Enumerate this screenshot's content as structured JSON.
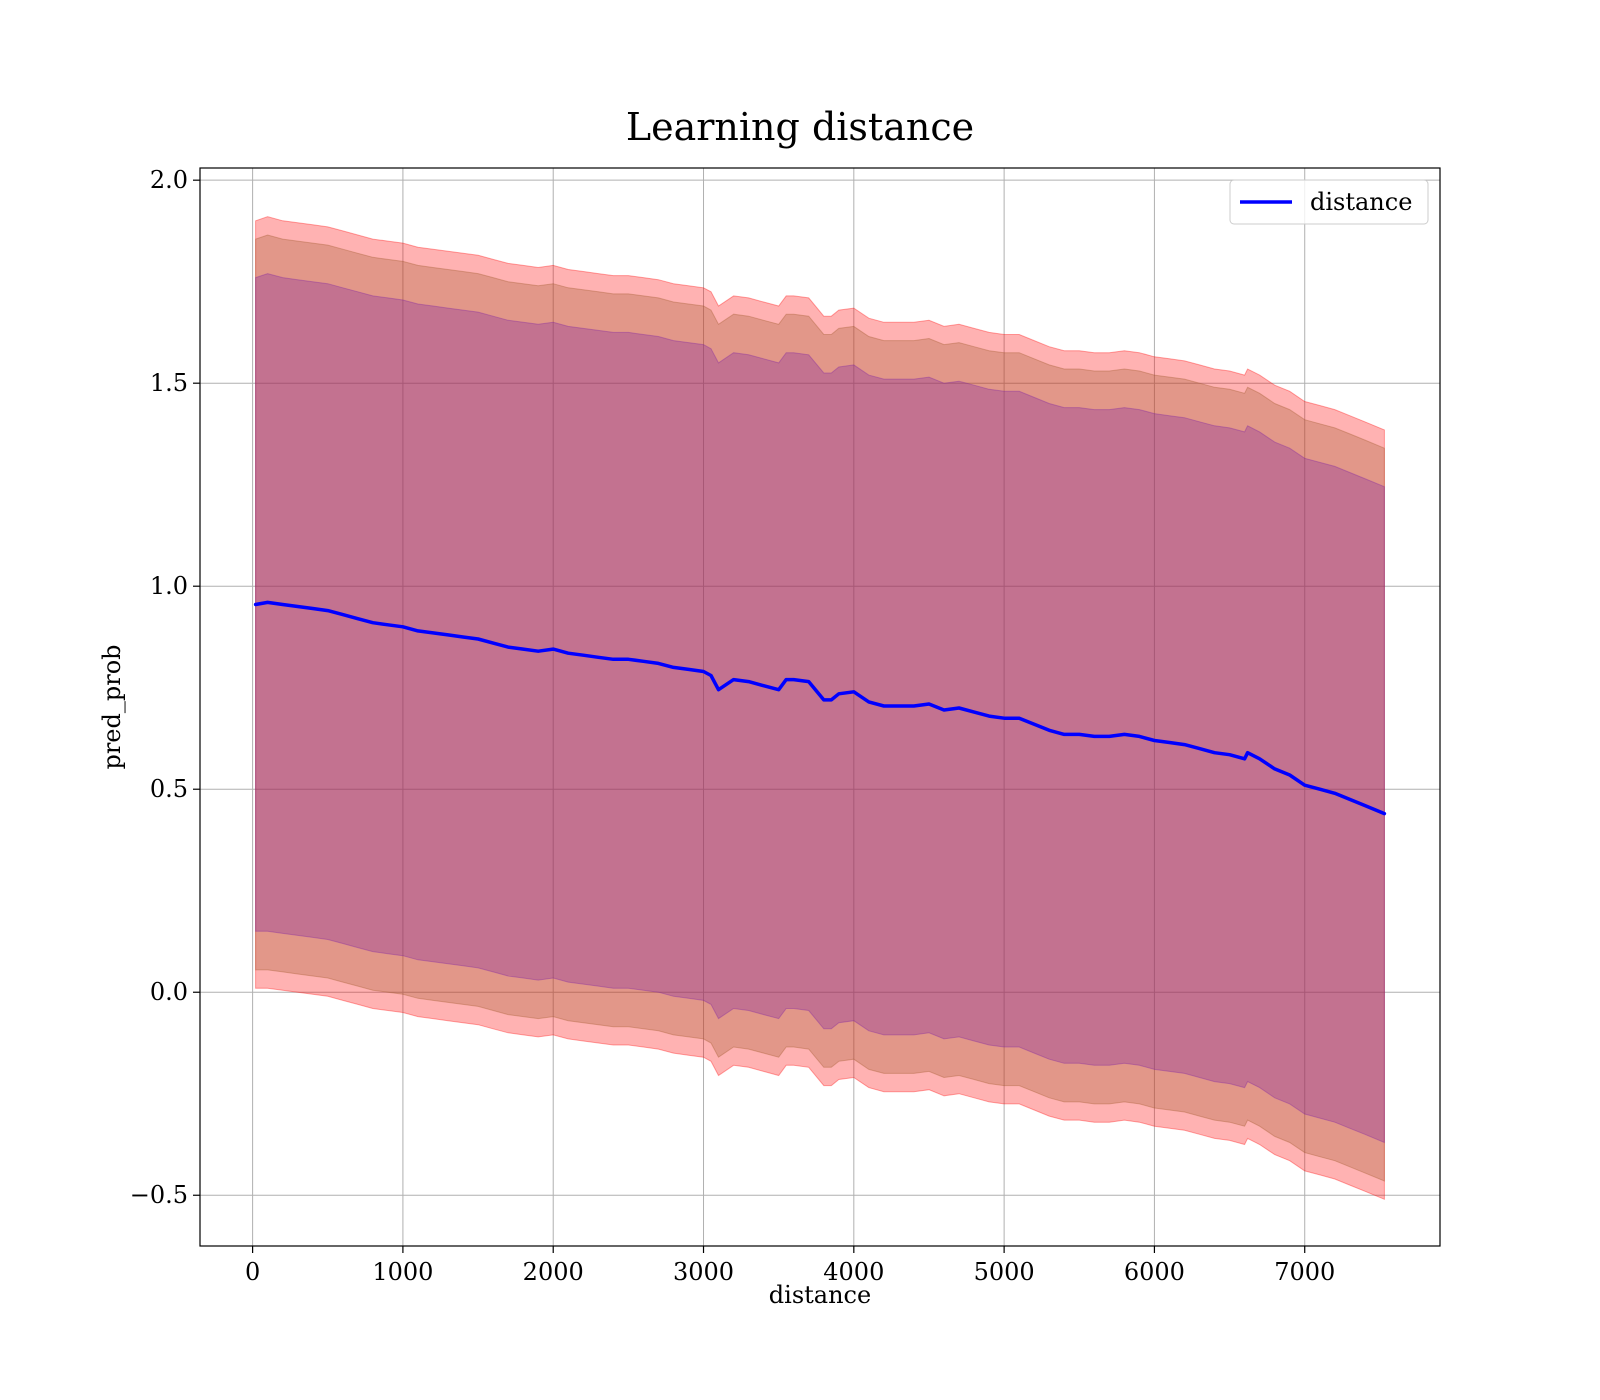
{
  "chart_data": {
    "type": "line",
    "title": "Learning distance",
    "xlabel": "distance",
    "ylabel": "pred_prob",
    "xlim": [
      -350,
      7900
    ],
    "ylim": [
      -0.625,
      2.03
    ],
    "x_ticks": [
      0,
      1000,
      2000,
      3000,
      4000,
      5000,
      6000,
      7000
    ],
    "x_tick_labels": [
      "0",
      "1000",
      "2000",
      "3000",
      "4000",
      "5000",
      "6000",
      "7000"
    ],
    "y_ticks": [
      -0.5,
      0.0,
      0.5,
      1.0,
      1.5,
      2.0
    ],
    "y_tick_labels": [
      "−0.5",
      "0.0",
      "0.5",
      "1.0",
      "1.5",
      "2.0"
    ],
    "grid": true,
    "legend_position": "top-right",
    "legend": [
      {
        "label": "distance",
        "color": "#0000ff"
      }
    ],
    "series": [
      {
        "name": "distance",
        "color": "#0000ff",
        "x": [
          20,
          100,
          200,
          300,
          400,
          500,
          600,
          700,
          800,
          900,
          1000,
          1100,
          1200,
          1300,
          1400,
          1500,
          1600,
          1700,
          1800,
          1900,
          2000,
          2100,
          2200,
          2300,
          2400,
          2500,
          2600,
          2700,
          2800,
          2900,
          3000,
          3050,
          3100,
          3200,
          3300,
          3400,
          3500,
          3550,
          3600,
          3700,
          3800,
          3850,
          3900,
          4000,
          4100,
          4200,
          4300,
          4400,
          4500,
          4600,
          4700,
          4800,
          4900,
          5000,
          5100,
          5200,
          5300,
          5400,
          5500,
          5600,
          5700,
          5800,
          5900,
          6000,
          6100,
          6200,
          6300,
          6400,
          6500,
          6600,
          6620,
          6700,
          6800,
          6900,
          7000,
          7100,
          7200,
          7300,
          7400,
          7530
        ],
        "y": [
          0.955,
          0.96,
          0.955,
          0.95,
          0.945,
          0.94,
          0.93,
          0.92,
          0.91,
          0.905,
          0.9,
          0.89,
          0.885,
          0.88,
          0.875,
          0.87,
          0.86,
          0.85,
          0.845,
          0.84,
          0.845,
          0.835,
          0.83,
          0.825,
          0.82,
          0.82,
          0.815,
          0.81,
          0.8,
          0.795,
          0.79,
          0.78,
          0.745,
          0.77,
          0.765,
          0.755,
          0.745,
          0.77,
          0.77,
          0.765,
          0.72,
          0.72,
          0.735,
          0.74,
          0.715,
          0.705,
          0.705,
          0.705,
          0.71,
          0.695,
          0.7,
          0.69,
          0.68,
          0.675,
          0.675,
          0.66,
          0.645,
          0.635,
          0.635,
          0.63,
          0.63,
          0.635,
          0.63,
          0.62,
          0.615,
          0.61,
          0.6,
          0.59,
          0.585,
          0.575,
          0.59,
          0.575,
          0.55,
          0.535,
          0.51,
          0.5,
          0.49,
          0.475,
          0.46,
          0.44
        ]
      }
    ],
    "bands": [
      {
        "color": "#ff0000",
        "x": [
          20,
          100,
          200,
          300,
          400,
          500,
          600,
          700,
          800,
          900,
          1000,
          1100,
          1200,
          1300,
          1400,
          1500,
          1600,
          1700,
          1800,
          1900,
          2000,
          2100,
          2200,
          2300,
          2400,
          2500,
          2600,
          2700,
          2800,
          2900,
          3000,
          3050,
          3100,
          3200,
          3300,
          3400,
          3500,
          3550,
          3600,
          3700,
          3800,
          3850,
          3900,
          4000,
          4100,
          4200,
          4300,
          4400,
          4500,
          4600,
          4700,
          4800,
          4900,
          5000,
          5100,
          5200,
          5300,
          5400,
          5500,
          5600,
          5700,
          5800,
          5900,
          6000,
          6100,
          6200,
          6300,
          6400,
          6500,
          6600,
          6620,
          6700,
          6800,
          6900,
          7000,
          7100,
          7200,
          7300,
          7400,
          7530
        ],
        "upper": [
          1.9,
          1.91,
          1.9,
          1.895,
          1.89,
          1.885,
          1.875,
          1.865,
          1.855,
          1.85,
          1.845,
          1.835,
          1.83,
          1.825,
          1.82,
          1.815,
          1.805,
          1.795,
          1.79,
          1.785,
          1.79,
          1.78,
          1.775,
          1.77,
          1.765,
          1.765,
          1.76,
          1.755,
          1.745,
          1.74,
          1.735,
          1.725,
          1.69,
          1.715,
          1.71,
          1.7,
          1.69,
          1.715,
          1.715,
          1.71,
          1.665,
          1.665,
          1.68,
          1.685,
          1.66,
          1.65,
          1.65,
          1.65,
          1.655,
          1.64,
          1.645,
          1.635,
          1.625,
          1.62,
          1.62,
          1.605,
          1.59,
          1.58,
          1.58,
          1.575,
          1.575,
          1.58,
          1.575,
          1.565,
          1.56,
          1.555,
          1.545,
          1.535,
          1.53,
          1.52,
          1.535,
          1.52,
          1.495,
          1.48,
          1.455,
          1.445,
          1.435,
          1.42,
          1.405,
          1.385
        ],
        "lower": [
          0.01,
          0.01,
          0.005,
          0.0,
          -0.005,
          -0.01,
          -0.02,
          -0.03,
          -0.04,
          -0.045,
          -0.05,
          -0.06,
          -0.065,
          -0.07,
          -0.075,
          -0.08,
          -0.09,
          -0.1,
          -0.105,
          -0.11,
          -0.105,
          -0.115,
          -0.12,
          -0.125,
          -0.13,
          -0.13,
          -0.135,
          -0.14,
          -0.15,
          -0.155,
          -0.16,
          -0.17,
          -0.205,
          -0.18,
          -0.185,
          -0.195,
          -0.205,
          -0.18,
          -0.18,
          -0.185,
          -0.23,
          -0.23,
          -0.215,
          -0.21,
          -0.235,
          -0.245,
          -0.245,
          -0.245,
          -0.24,
          -0.255,
          -0.25,
          -0.26,
          -0.27,
          -0.275,
          -0.275,
          -0.29,
          -0.305,
          -0.315,
          -0.315,
          -0.32,
          -0.32,
          -0.315,
          -0.32,
          -0.33,
          -0.335,
          -0.34,
          -0.35,
          -0.36,
          -0.365,
          -0.375,
          -0.36,
          -0.375,
          -0.4,
          -0.415,
          -0.44,
          -0.45,
          -0.46,
          -0.475,
          -0.49,
          -0.51
        ]
      },
      {
        "color": "#a05a2c",
        "x": [
          20,
          100,
          200,
          300,
          400,
          500,
          600,
          700,
          800,
          900,
          1000,
          1100,
          1200,
          1300,
          1400,
          1500,
          1600,
          1700,
          1800,
          1900,
          2000,
          2100,
          2200,
          2300,
          2400,
          2500,
          2600,
          2700,
          2800,
          2900,
          3000,
          3050,
          3100,
          3200,
          3300,
          3400,
          3500,
          3550,
          3600,
          3700,
          3800,
          3850,
          3900,
          4000,
          4100,
          4200,
          4300,
          4400,
          4500,
          4600,
          4700,
          4800,
          4900,
          5000,
          5100,
          5200,
          5300,
          5400,
          5500,
          5600,
          5700,
          5800,
          5900,
          6000,
          6100,
          6200,
          6300,
          6400,
          6500,
          6600,
          6620,
          6700,
          6800,
          6900,
          7000,
          7100,
          7200,
          7300,
          7400,
          7530
        ],
        "upper": [
          1.855,
          1.865,
          1.855,
          1.85,
          1.845,
          1.84,
          1.83,
          1.82,
          1.81,
          1.805,
          1.8,
          1.79,
          1.785,
          1.78,
          1.775,
          1.77,
          1.76,
          1.75,
          1.745,
          1.74,
          1.745,
          1.735,
          1.73,
          1.725,
          1.72,
          1.72,
          1.715,
          1.71,
          1.7,
          1.695,
          1.69,
          1.68,
          1.645,
          1.67,
          1.665,
          1.655,
          1.645,
          1.67,
          1.67,
          1.665,
          1.62,
          1.62,
          1.635,
          1.64,
          1.615,
          1.605,
          1.605,
          1.605,
          1.61,
          1.595,
          1.6,
          1.59,
          1.58,
          1.575,
          1.575,
          1.56,
          1.545,
          1.535,
          1.535,
          1.53,
          1.53,
          1.535,
          1.53,
          1.52,
          1.515,
          1.51,
          1.5,
          1.49,
          1.485,
          1.475,
          1.49,
          1.475,
          1.45,
          1.435,
          1.41,
          1.4,
          1.39,
          1.375,
          1.36,
          1.34
        ],
        "lower": [
          0.055,
          0.055,
          0.05,
          0.045,
          0.04,
          0.035,
          0.025,
          0.015,
          0.005,
          0.0,
          -0.005,
          -0.015,
          -0.02,
          -0.025,
          -0.03,
          -0.035,
          -0.045,
          -0.055,
          -0.06,
          -0.065,
          -0.06,
          -0.07,
          -0.075,
          -0.08,
          -0.085,
          -0.085,
          -0.09,
          -0.095,
          -0.105,
          -0.11,
          -0.115,
          -0.125,
          -0.16,
          -0.135,
          -0.14,
          -0.15,
          -0.16,
          -0.135,
          -0.135,
          -0.14,
          -0.185,
          -0.185,
          -0.17,
          -0.165,
          -0.19,
          -0.2,
          -0.2,
          -0.2,
          -0.195,
          -0.21,
          -0.205,
          -0.215,
          -0.225,
          -0.23,
          -0.23,
          -0.245,
          -0.26,
          -0.27,
          -0.27,
          -0.275,
          -0.275,
          -0.27,
          -0.275,
          -0.285,
          -0.29,
          -0.295,
          -0.305,
          -0.315,
          -0.32,
          -0.33,
          -0.315,
          -0.33,
          -0.355,
          -0.37,
          -0.395,
          -0.405,
          -0.415,
          -0.43,
          -0.445,
          -0.465
        ]
      },
      {
        "color": "#7b1fa2",
        "x": [
          20,
          100,
          200,
          300,
          400,
          500,
          600,
          700,
          800,
          900,
          1000,
          1100,
          1200,
          1300,
          1400,
          1500,
          1600,
          1700,
          1800,
          1900,
          2000,
          2100,
          2200,
          2300,
          2400,
          2500,
          2600,
          2700,
          2800,
          2900,
          3000,
          3050,
          3100,
          3200,
          3300,
          3400,
          3500,
          3550,
          3600,
          3700,
          3800,
          3850,
          3900,
          4000,
          4100,
          4200,
          4300,
          4400,
          4500,
          4600,
          4700,
          4800,
          4900,
          5000,
          5100,
          5200,
          5300,
          5400,
          5500,
          5600,
          5700,
          5800,
          5900,
          6000,
          6100,
          6200,
          6300,
          6400,
          6500,
          6600,
          6620,
          6700,
          6800,
          6900,
          7000,
          7100,
          7200,
          7300,
          7400,
          7530
        ],
        "upper": [
          1.76,
          1.77,
          1.76,
          1.755,
          1.75,
          1.745,
          1.735,
          1.725,
          1.715,
          1.71,
          1.705,
          1.695,
          1.69,
          1.685,
          1.68,
          1.675,
          1.665,
          1.655,
          1.65,
          1.645,
          1.65,
          1.64,
          1.635,
          1.63,
          1.625,
          1.625,
          1.62,
          1.615,
          1.605,
          1.6,
          1.595,
          1.585,
          1.55,
          1.575,
          1.57,
          1.56,
          1.55,
          1.575,
          1.575,
          1.57,
          1.525,
          1.525,
          1.54,
          1.545,
          1.52,
          1.51,
          1.51,
          1.51,
          1.515,
          1.5,
          1.505,
          1.495,
          1.485,
          1.48,
          1.48,
          1.465,
          1.45,
          1.44,
          1.44,
          1.435,
          1.435,
          1.44,
          1.435,
          1.425,
          1.42,
          1.415,
          1.405,
          1.395,
          1.39,
          1.38,
          1.395,
          1.38,
          1.355,
          1.34,
          1.315,
          1.305,
          1.295,
          1.28,
          1.265,
          1.245
        ],
        "lower": [
          0.15,
          0.15,
          0.145,
          0.14,
          0.135,
          0.13,
          0.12,
          0.11,
          0.1,
          0.095,
          0.09,
          0.08,
          0.075,
          0.07,
          0.065,
          0.06,
          0.05,
          0.04,
          0.035,
          0.03,
          0.035,
          0.025,
          0.02,
          0.015,
          0.01,
          0.01,
          0.005,
          0.0,
          -0.01,
          -0.015,
          -0.02,
          -0.03,
          -0.065,
          -0.04,
          -0.045,
          -0.055,
          -0.065,
          -0.04,
          -0.04,
          -0.045,
          -0.09,
          -0.09,
          -0.075,
          -0.07,
          -0.095,
          -0.105,
          -0.105,
          -0.105,
          -0.1,
          -0.115,
          -0.11,
          -0.12,
          -0.13,
          -0.135,
          -0.135,
          -0.15,
          -0.165,
          -0.175,
          -0.175,
          -0.18,
          -0.18,
          -0.175,
          -0.18,
          -0.19,
          -0.195,
          -0.2,
          -0.21,
          -0.22,
          -0.225,
          -0.235,
          -0.22,
          -0.235,
          -0.26,
          -0.275,
          -0.3,
          -0.31,
          -0.32,
          -0.335,
          -0.35,
          -0.37
        ]
      }
    ]
  }
}
